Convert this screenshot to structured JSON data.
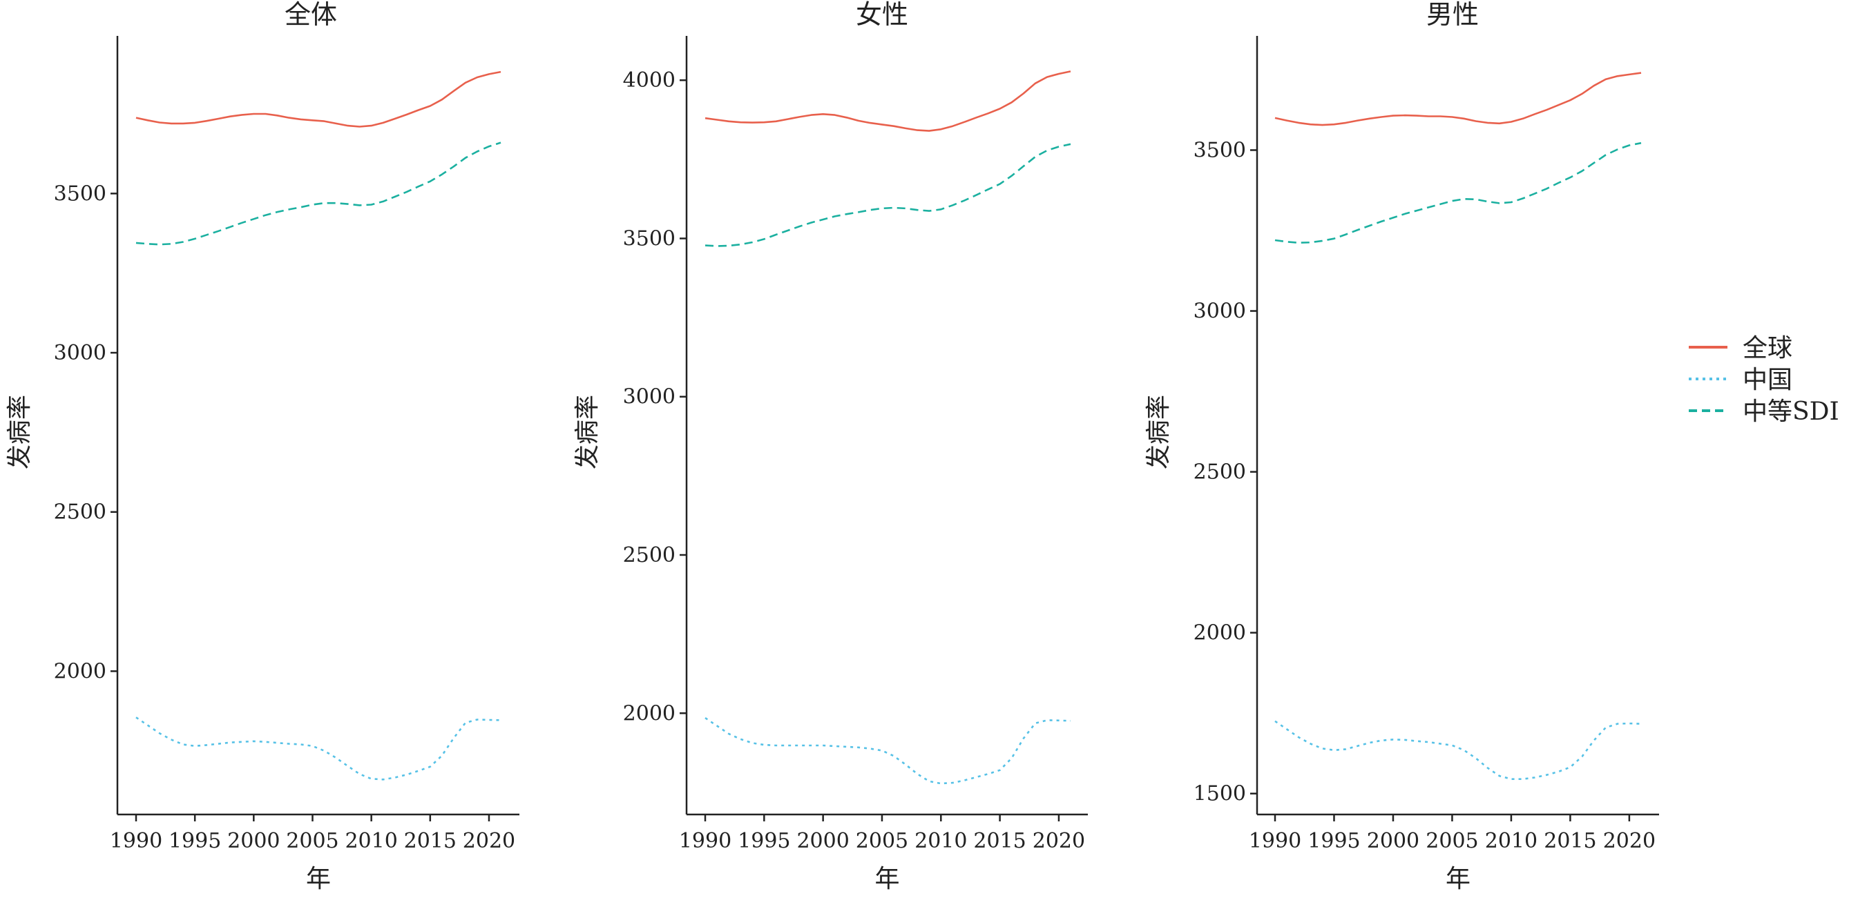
{
  "chart_data": {
    "type": "line",
    "x": [
      1990,
      1991,
      1992,
      1993,
      1994,
      1995,
      1996,
      1997,
      1998,
      1999,
      2000,
      2001,
      2002,
      2003,
      2004,
      2005,
      2006,
      2007,
      2008,
      2009,
      2010,
      2011,
      2012,
      2013,
      2014,
      2015,
      2016,
      2017,
      2018,
      2019,
      2020,
      2021
    ],
    "legend": {
      "position": "right",
      "entries": [
        {
          "key": "global",
          "label": "全球",
          "color": "#E8604C",
          "dash": ""
        },
        {
          "key": "china",
          "label": "中国",
          "color": "#56C1E6",
          "dash": "4,6"
        },
        {
          "key": "mid_sdi",
          "label": "中等SDI",
          "color": "#1BB0A0",
          "dash": "12,7"
        }
      ]
    },
    "panels": [
      {
        "title": "全体",
        "xlabel": "年",
        "ylabel": "发病率",
        "xticks": [
          1990,
          1995,
          2000,
          2005,
          2010,
          2015,
          2020
        ],
        "yticks": [
          2000,
          2500,
          3000,
          3500
        ],
        "ylim": [
          1550,
          3995
        ],
        "series": [
          {
            "key": "global",
            "values": [
              3738,
              3730,
              3723,
              3720,
              3720,
              3722,
              3728,
              3735,
              3742,
              3747,
              3750,
              3750,
              3745,
              3738,
              3733,
              3730,
              3727,
              3720,
              3713,
              3710,
              3713,
              3722,
              3735,
              3748,
              3762,
              3775,
              3795,
              3822,
              3848,
              3865,
              3875,
              3882
            ]
          },
          {
            "key": "china",
            "values": [
              1855,
              1830,
              1805,
              1785,
              1770,
              1765,
              1768,
              1772,
              1776,
              1778,
              1780,
              1778,
              1775,
              1772,
              1770,
              1765,
              1750,
              1728,
              1702,
              1677,
              1662,
              1660,
              1666,
              1675,
              1687,
              1700,
              1735,
              1790,
              1838,
              1848,
              1847,
              1846
            ]
          },
          {
            "key": "mid_sdi",
            "values": [
              3345,
              3342,
              3340,
              3342,
              3348,
              3358,
              3370,
              3382,
              3395,
              3408,
              3420,
              3432,
              3442,
              3450,
              3457,
              3465,
              3470,
              3470,
              3467,
              3463,
              3465,
              3475,
              3490,
              3505,
              3522,
              3538,
              3560,
              3585,
              3612,
              3632,
              3648,
              3660
            ]
          }
        ]
      },
      {
        "title": "女性",
        "xlabel": "年",
        "ylabel": "发病率",
        "xticks": [
          1990,
          1995,
          2000,
          2005,
          2010,
          2015,
          2020
        ],
        "yticks": [
          2000,
          2500,
          3000,
          3500,
          4000
        ],
        "ylim": [
          1680,
          4140
        ],
        "series": [
          {
            "key": "global",
            "values": [
              3880,
              3875,
              3870,
              3867,
              3866,
              3867,
              3870,
              3877,
              3884,
              3890,
              3893,
              3890,
              3882,
              3872,
              3865,
              3860,
              3855,
              3848,
              3842,
              3840,
              3845,
              3855,
              3868,
              3882,
              3895,
              3910,
              3930,
              3958,
              3990,
              4010,
              4020,
              4028
            ]
          },
          {
            "key": "china",
            "values": [
              1985,
              1960,
              1935,
              1918,
              1906,
              1900,
              1898,
              1898,
              1898,
              1898,
              1898,
              1896,
              1894,
              1892,
              1888,
              1882,
              1865,
              1838,
              1808,
              1785,
              1778,
              1780,
              1788,
              1798,
              1808,
              1820,
              1858,
              1920,
              1968,
              1978,
              1977,
              1976
            ]
          },
          {
            "key": "mid_sdi",
            "values": [
              3478,
              3476,
              3477,
              3481,
              3488,
              3498,
              3512,
              3525,
              3538,
              3550,
              3560,
              3570,
              3577,
              3583,
              3590,
              3595,
              3597,
              3595,
              3590,
              3587,
              3592,
              3605,
              3620,
              3637,
              3655,
              3672,
              3698,
              3728,
              3758,
              3778,
              3790,
              3798
            ]
          }
        ]
      },
      {
        "title": "男性",
        "xlabel": "年",
        "ylabel": "发病率",
        "xticks": [
          1990,
          1995,
          2000,
          2005,
          2010,
          2015,
          2020
        ],
        "yticks": [
          1500,
          2000,
          2500,
          3000,
          3500
        ],
        "ylim": [
          1435,
          3855
        ],
        "series": [
          {
            "key": "global",
            "values": [
              3600,
              3592,
              3585,
              3580,
              3578,
              3580,
              3585,
              3592,
              3598,
              3603,
              3607,
              3608,
              3607,
              3605,
              3605,
              3603,
              3598,
              3590,
              3585,
              3583,
              3588,
              3598,
              3612,
              3625,
              3640,
              3655,
              3675,
              3700,
              3720,
              3730,
              3735,
              3740
            ]
          },
          {
            "key": "china",
            "values": [
              1725,
              1700,
              1675,
              1655,
              1640,
              1635,
              1638,
              1648,
              1658,
              1665,
              1668,
              1667,
              1663,
              1660,
              1655,
              1650,
              1635,
              1610,
              1580,
              1555,
              1545,
              1545,
              1550,
              1558,
              1568,
              1582,
              1615,
              1665,
              1705,
              1717,
              1718,
              1717
            ]
          },
          {
            "key": "mid_sdi",
            "values": [
              3220,
              3215,
              3212,
              3213,
              3218,
              3225,
              3238,
              3252,
              3265,
              3278,
              3290,
              3302,
              3312,
              3322,
              3332,
              3342,
              3348,
              3347,
              3340,
              3335,
              3338,
              3350,
              3365,
              3380,
              3398,
              3415,
              3435,
              3460,
              3485,
              3502,
              3515,
              3522
            ]
          }
        ]
      }
    ]
  }
}
